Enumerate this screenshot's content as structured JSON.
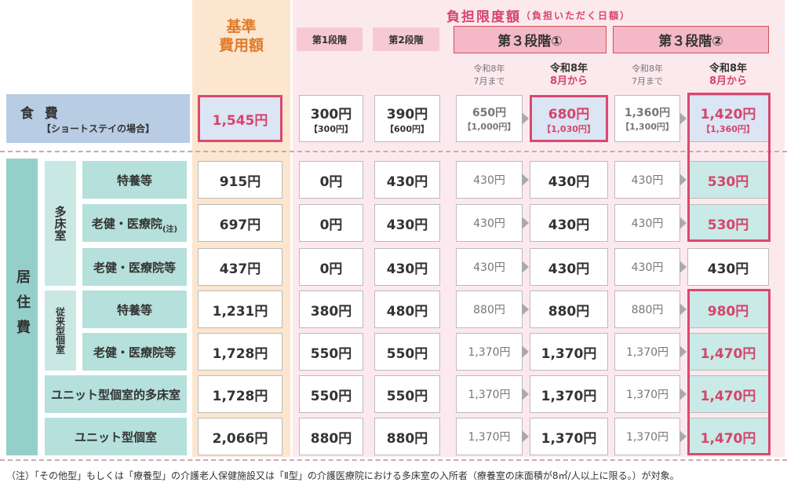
{
  "header": {
    "base_cost": [
      "基準",
      "費用額"
    ],
    "limit_title": "負担限度額",
    "limit_subtitle": "（負担いただく日額）",
    "stages": [
      "第1段階",
      "第2段階",
      "第３段階①",
      "第３段階②"
    ],
    "periods": [
      [
        "令和8年",
        "7月まで"
      ],
      [
        "令和8年",
        "8月から"
      ],
      [
        "令和8年",
        "7月まで"
      ],
      [
        "令和8年",
        "8月から"
      ]
    ]
  },
  "food": {
    "label": "食 費",
    "sublabel": "【ショートステイの場合】",
    "cells": [
      [
        "1,545円"
      ],
      [
        "300円",
        "【300円】"
      ],
      [
        "390円",
        "【600円】"
      ],
      [
        "650円",
        "【1,000円】"
      ],
      [
        "680円",
        "【1,030円】"
      ],
      [
        "1,360円",
        "【1,300円】"
      ],
      [
        "1,420円",
        "【1,360円】"
      ]
    ]
  },
  "housing": {
    "label": "居住費",
    "groups": [
      {
        "label": "多床室",
        "rows": [
          {
            "label": "特養等",
            "cells": [
              "915円",
              "0円",
              "430円",
              "430円",
              "430円",
              "430円",
              "530円"
            ]
          },
          {
            "label": "老健・医療院",
            "note": "(注)",
            "cells": [
              "697円",
              "0円",
              "430円",
              "430円",
              "430円",
              "430円",
              "530円"
            ]
          },
          {
            "label": "老健・医療院等",
            "cells": [
              "437円",
              "0円",
              "430円",
              "430円",
              "430円",
              "430円",
              "430円"
            ]
          }
        ]
      },
      {
        "label": "従来型個室",
        "rows": [
          {
            "label": "特養等",
            "cells": [
              "1,231円",
              "380円",
              "480円",
              "880円",
              "880円",
              "880円",
              "980円"
            ]
          },
          {
            "label": "老健・医療院等",
            "cells": [
              "1,728円",
              "550円",
              "550円",
              "1,370円",
              "1,370円",
              "1,370円",
              "1,470円"
            ]
          }
        ]
      },
      {
        "rows": [
          {
            "label": "ユニット型個室的多床室",
            "cells": [
              "1,728円",
              "550円",
              "550円",
              "1,370円",
              "1,370円",
              "1,370円",
              "1,470円"
            ]
          }
        ]
      },
      {
        "rows": [
          {
            "label": "ユニット型個室",
            "cells": [
              "2,066円",
              "880円",
              "880円",
              "1,370円",
              "1,370円",
              "1,370円",
              "1,470円"
            ]
          }
        ]
      }
    ]
  },
  "footnote": "（注）「その他型」もしくは「療養型」の介護老人保健施設又は「Ⅱ型」の介護医療院における多床室の入所者（療養室の床面積が8㎡/人以上に限る。）が対象。"
}
